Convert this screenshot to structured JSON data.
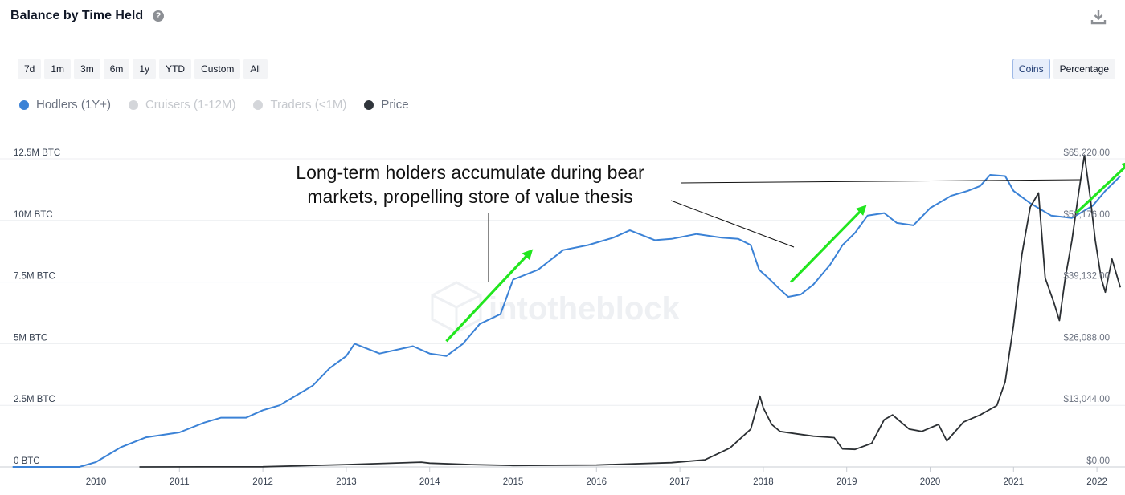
{
  "header": {
    "title": "Balance by Time Held",
    "help_icon": "question-circle-icon",
    "download_icon": "download-icon"
  },
  "range_buttons": [
    "7d",
    "1m",
    "3m",
    "6m",
    "1y",
    "YTD",
    "Custom",
    "All"
  ],
  "mode_buttons": [
    {
      "label": "Coins",
      "active": true
    },
    {
      "label": "Percentage",
      "active": false
    }
  ],
  "legend": [
    {
      "label": "Hodlers (1Y+)",
      "color": "#3b82d6",
      "enabled": true
    },
    {
      "label": "Cruisers (1-12M)",
      "color": "#d4d6da",
      "enabled": false
    },
    {
      "label": "Traders (<1M)",
      "color": "#d4d6da",
      "enabled": false
    },
    {
      "label": "Price",
      "color": "#30353b",
      "enabled": true
    }
  ],
  "watermark": "intotheblock",
  "annotation": {
    "line1": "Long-term holders accumulate during bear",
    "line2": "markets, propelling store of value thesis"
  },
  "chart_data": {
    "type": "line",
    "x_ticks": [
      "2010",
      "2011",
      "2012",
      "2013",
      "2014",
      "2015",
      "2016",
      "2017",
      "2018",
      "2019",
      "2020",
      "2021",
      "2022"
    ],
    "y_left": {
      "ticks": [
        "0 BTC",
        "2.5M BTC",
        "5M BTC",
        "7.5M BTC",
        "10M BTC",
        "12.5M BTC"
      ],
      "range": [
        0,
        12500000
      ]
    },
    "y_right": {
      "ticks": [
        "$0.00",
        "$13,044.00",
        "$26,088.00",
        "$39,132.00",
        "$52,176.00",
        "$65,220.00"
      ],
      "range": [
        0,
        65220
      ]
    },
    "grid": true,
    "series": [
      {
        "name": "Hodlers (1Y+)",
        "axis": "left",
        "color": "#3b82d6",
        "points": [
          [
            2009.0,
            0
          ],
          [
            2009.8,
            0
          ],
          [
            2010.0,
            200000
          ],
          [
            2010.3,
            800000
          ],
          [
            2010.6,
            1200000
          ],
          [
            2011.0,
            1400000
          ],
          [
            2011.3,
            1800000
          ],
          [
            2011.5,
            2000000
          ],
          [
            2011.8,
            2000000
          ],
          [
            2012.0,
            2300000
          ],
          [
            2012.2,
            2500000
          ],
          [
            2012.4,
            2900000
          ],
          [
            2012.6,
            3300000
          ],
          [
            2012.8,
            4000000
          ],
          [
            2013.0,
            4500000
          ],
          [
            2013.1,
            5000000
          ],
          [
            2013.4,
            4600000
          ],
          [
            2013.8,
            4900000
          ],
          [
            2014.0,
            4600000
          ],
          [
            2014.2,
            4500000
          ],
          [
            2014.4,
            5000000
          ],
          [
            2014.6,
            5800000
          ],
          [
            2014.85,
            6200000
          ],
          [
            2015.0,
            7600000
          ],
          [
            2015.3,
            8000000
          ],
          [
            2015.6,
            8800000
          ],
          [
            2015.9,
            9000000
          ],
          [
            2016.2,
            9300000
          ],
          [
            2016.4,
            9600000
          ],
          [
            2016.7,
            9200000
          ],
          [
            2016.9,
            9250000
          ],
          [
            2017.2,
            9450000
          ],
          [
            2017.5,
            9300000
          ],
          [
            2017.7,
            9250000
          ],
          [
            2017.85,
            9000000
          ],
          [
            2017.95,
            8000000
          ],
          [
            2018.05,
            7700000
          ],
          [
            2018.2,
            7200000
          ],
          [
            2018.3,
            6900000
          ],
          [
            2018.45,
            7000000
          ],
          [
            2018.6,
            7400000
          ],
          [
            2018.8,
            8200000
          ],
          [
            2018.95,
            9000000
          ],
          [
            2019.1,
            9500000
          ],
          [
            2019.25,
            10200000
          ],
          [
            2019.45,
            10300000
          ],
          [
            2019.6,
            9900000
          ],
          [
            2019.8,
            9800000
          ],
          [
            2020.0,
            10500000
          ],
          [
            2020.25,
            11000000
          ],
          [
            2020.45,
            11200000
          ],
          [
            2020.6,
            11400000
          ],
          [
            2020.72,
            11850000
          ],
          [
            2020.9,
            11800000
          ],
          [
            2021.0,
            11200000
          ],
          [
            2021.2,
            10700000
          ],
          [
            2021.45,
            10200000
          ],
          [
            2021.7,
            10100000
          ],
          [
            2021.95,
            10600000
          ],
          [
            2022.1,
            11200000
          ],
          [
            2022.28,
            11800000
          ]
        ]
      },
      {
        "name": "Price",
        "axis": "right",
        "color": "#2b2f33",
        "points": [
          [
            2010.52,
            0
          ],
          [
            2012.0,
            30
          ],
          [
            2013.0,
            500
          ],
          [
            2013.9,
            1000
          ],
          [
            2014.0,
            800
          ],
          [
            2014.5,
            500
          ],
          [
            2015.0,
            300
          ],
          [
            2016.0,
            400
          ],
          [
            2016.9,
            900
          ],
          [
            2017.3,
            1500
          ],
          [
            2017.6,
            4000
          ],
          [
            2017.85,
            8000
          ],
          [
            2017.96,
            15000
          ],
          [
            2018.0,
            12500
          ],
          [
            2018.1,
            9000
          ],
          [
            2018.2,
            7500
          ],
          [
            2018.4,
            7000
          ],
          [
            2018.6,
            6500
          ],
          [
            2018.85,
            6200
          ],
          [
            2018.95,
            3800
          ],
          [
            2019.1,
            3700
          ],
          [
            2019.3,
            5000
          ],
          [
            2019.45,
            10000
          ],
          [
            2019.55,
            11000
          ],
          [
            2019.75,
            8000
          ],
          [
            2019.9,
            7500
          ],
          [
            2020.1,
            9000
          ],
          [
            2020.2,
            5500
          ],
          [
            2020.4,
            9500
          ],
          [
            2020.6,
            11000
          ],
          [
            2020.8,
            13000
          ],
          [
            2020.9,
            18000
          ],
          [
            2021.0,
            30000
          ],
          [
            2021.1,
            45000
          ],
          [
            2021.2,
            55000
          ],
          [
            2021.3,
            58000
          ],
          [
            2021.38,
            40000
          ],
          [
            2021.48,
            35000
          ],
          [
            2021.55,
            31000
          ],
          [
            2021.62,
            40000
          ],
          [
            2021.7,
            48000
          ],
          [
            2021.78,
            58000
          ],
          [
            2021.85,
            66000
          ],
          [
            2021.92,
            57000
          ],
          [
            2021.98,
            48000
          ],
          [
            2022.05,
            40000
          ],
          [
            2022.1,
            37000
          ],
          [
            2022.18,
            44000
          ],
          [
            2022.28,
            38000
          ]
        ]
      }
    ],
    "arrows": [
      {
        "from": [
          2014.2,
          5100000
        ],
        "to": [
          2015.2,
          8700000
        ]
      },
      {
        "from": [
          2018.33,
          7500000
        ],
        "to": [
          2019.2,
          10500000
        ]
      },
      {
        "from": [
          2021.75,
          10300000
        ],
        "to": [
          2022.38,
          12300000
        ]
      }
    ]
  }
}
